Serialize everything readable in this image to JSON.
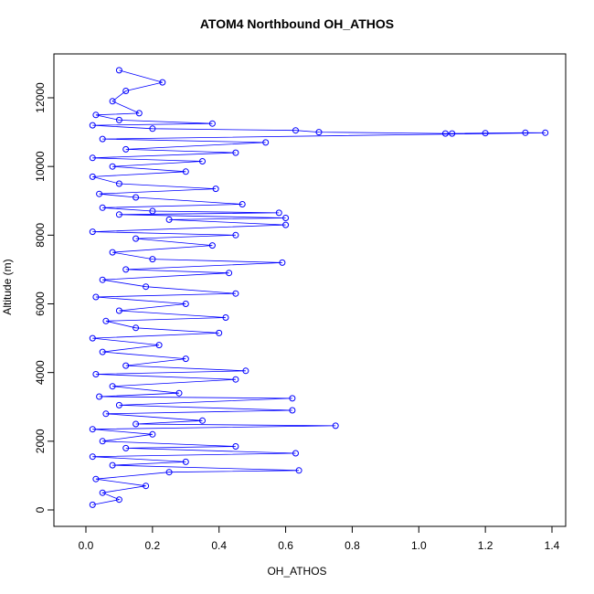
{
  "chart_data": {
    "type": "scatter",
    "title": "ATOM4 Northbound OH_ATHOS",
    "xlabel": "OH_ATHOS",
    "ylabel": "Altitude (m)",
    "xlim": [
      -0.05,
      1.4
    ],
    "ylim": [
      0,
      13000
    ],
    "x_ticks": [
      "0.0",
      "0.2",
      "0.4",
      "0.6",
      "0.8",
      "1.0",
      "1.2",
      "1.4"
    ],
    "x_tick_values": [
      0,
      0.2,
      0.4,
      0.6,
      0.8,
      1.0,
      1.2,
      1.4
    ],
    "y_ticks": [
      "0",
      "2000",
      "4000",
      "6000",
      "8000",
      "10000",
      "12000"
    ],
    "y_tick_values": [
      0,
      2000,
      4000,
      6000,
      8000,
      10000,
      12000
    ],
    "grid": false,
    "series": [
      {
        "color": "#0000ff",
        "marker": "open-circle",
        "connected": true,
        "points": [
          [
            0.02,
            150
          ],
          [
            0.1,
            300
          ],
          [
            0.05,
            500
          ],
          [
            0.18,
            700
          ],
          [
            0.03,
            900
          ],
          [
            0.25,
            1100
          ],
          [
            0.64,
            1150
          ],
          [
            0.08,
            1300
          ],
          [
            0.3,
            1400
          ],
          [
            0.02,
            1550
          ],
          [
            0.63,
            1650
          ],
          [
            0.12,
            1800
          ],
          [
            0.45,
            1850
          ],
          [
            0.05,
            2000
          ],
          [
            0.2,
            2200
          ],
          [
            0.02,
            2350
          ],
          [
            0.75,
            2450
          ],
          [
            0.15,
            2500
          ],
          [
            0.35,
            2600
          ],
          [
            0.06,
            2800
          ],
          [
            0.62,
            2900
          ],
          [
            0.1,
            3050
          ],
          [
            0.62,
            3250
          ],
          [
            0.04,
            3300
          ],
          [
            0.28,
            3400
          ],
          [
            0.08,
            3600
          ],
          [
            0.45,
            3800
          ],
          [
            0.03,
            3950
          ],
          [
            0.48,
            4050
          ],
          [
            0.12,
            4200
          ],
          [
            0.3,
            4400
          ],
          [
            0.05,
            4600
          ],
          [
            0.22,
            4800
          ],
          [
            0.02,
            5000
          ],
          [
            0.4,
            5150
          ],
          [
            0.15,
            5300
          ],
          [
            0.06,
            5500
          ],
          [
            0.42,
            5600
          ],
          [
            0.1,
            5800
          ],
          [
            0.3,
            6000
          ],
          [
            0.03,
            6200
          ],
          [
            0.45,
            6300
          ],
          [
            0.18,
            6500
          ],
          [
            0.05,
            6700
          ],
          [
            0.43,
            6900
          ],
          [
            0.12,
            7000
          ],
          [
            0.59,
            7200
          ],
          [
            0.2,
            7300
          ],
          [
            0.08,
            7500
          ],
          [
            0.38,
            7700
          ],
          [
            0.15,
            7900
          ],
          [
            0.45,
            8000
          ],
          [
            0.02,
            8100
          ],
          [
            0.6,
            8300
          ],
          [
            0.25,
            8450
          ],
          [
            0.6,
            8500
          ],
          [
            0.1,
            8600
          ],
          [
            0.58,
            8650
          ],
          [
            0.2,
            8700
          ],
          [
            0.05,
            8800
          ],
          [
            0.47,
            8900
          ],
          [
            0.15,
            9100
          ],
          [
            0.04,
            9200
          ],
          [
            0.39,
            9350
          ],
          [
            0.1,
            9500
          ],
          [
            0.02,
            9700
          ],
          [
            0.3,
            9850
          ],
          [
            0.08,
            10000
          ],
          [
            0.35,
            10150
          ],
          [
            0.02,
            10250
          ],
          [
            0.45,
            10400
          ],
          [
            0.12,
            10500
          ],
          [
            0.54,
            10700
          ],
          [
            0.05,
            10800
          ],
          [
            1.38,
            10980
          ],
          [
            1.32,
            10980
          ],
          [
            1.2,
            10970
          ],
          [
            1.1,
            10960
          ],
          [
            1.08,
            10960
          ],
          [
            0.7,
            11000
          ],
          [
            0.63,
            11050
          ],
          [
            0.2,
            11100
          ],
          [
            0.02,
            11200
          ],
          [
            0.38,
            11250
          ],
          [
            0.1,
            11350
          ],
          [
            0.03,
            11500
          ],
          [
            0.16,
            11550
          ],
          [
            0.08,
            11900
          ],
          [
            0.12,
            12200
          ],
          [
            0.23,
            12450
          ],
          [
            0.1,
            12800
          ]
        ]
      }
    ]
  }
}
